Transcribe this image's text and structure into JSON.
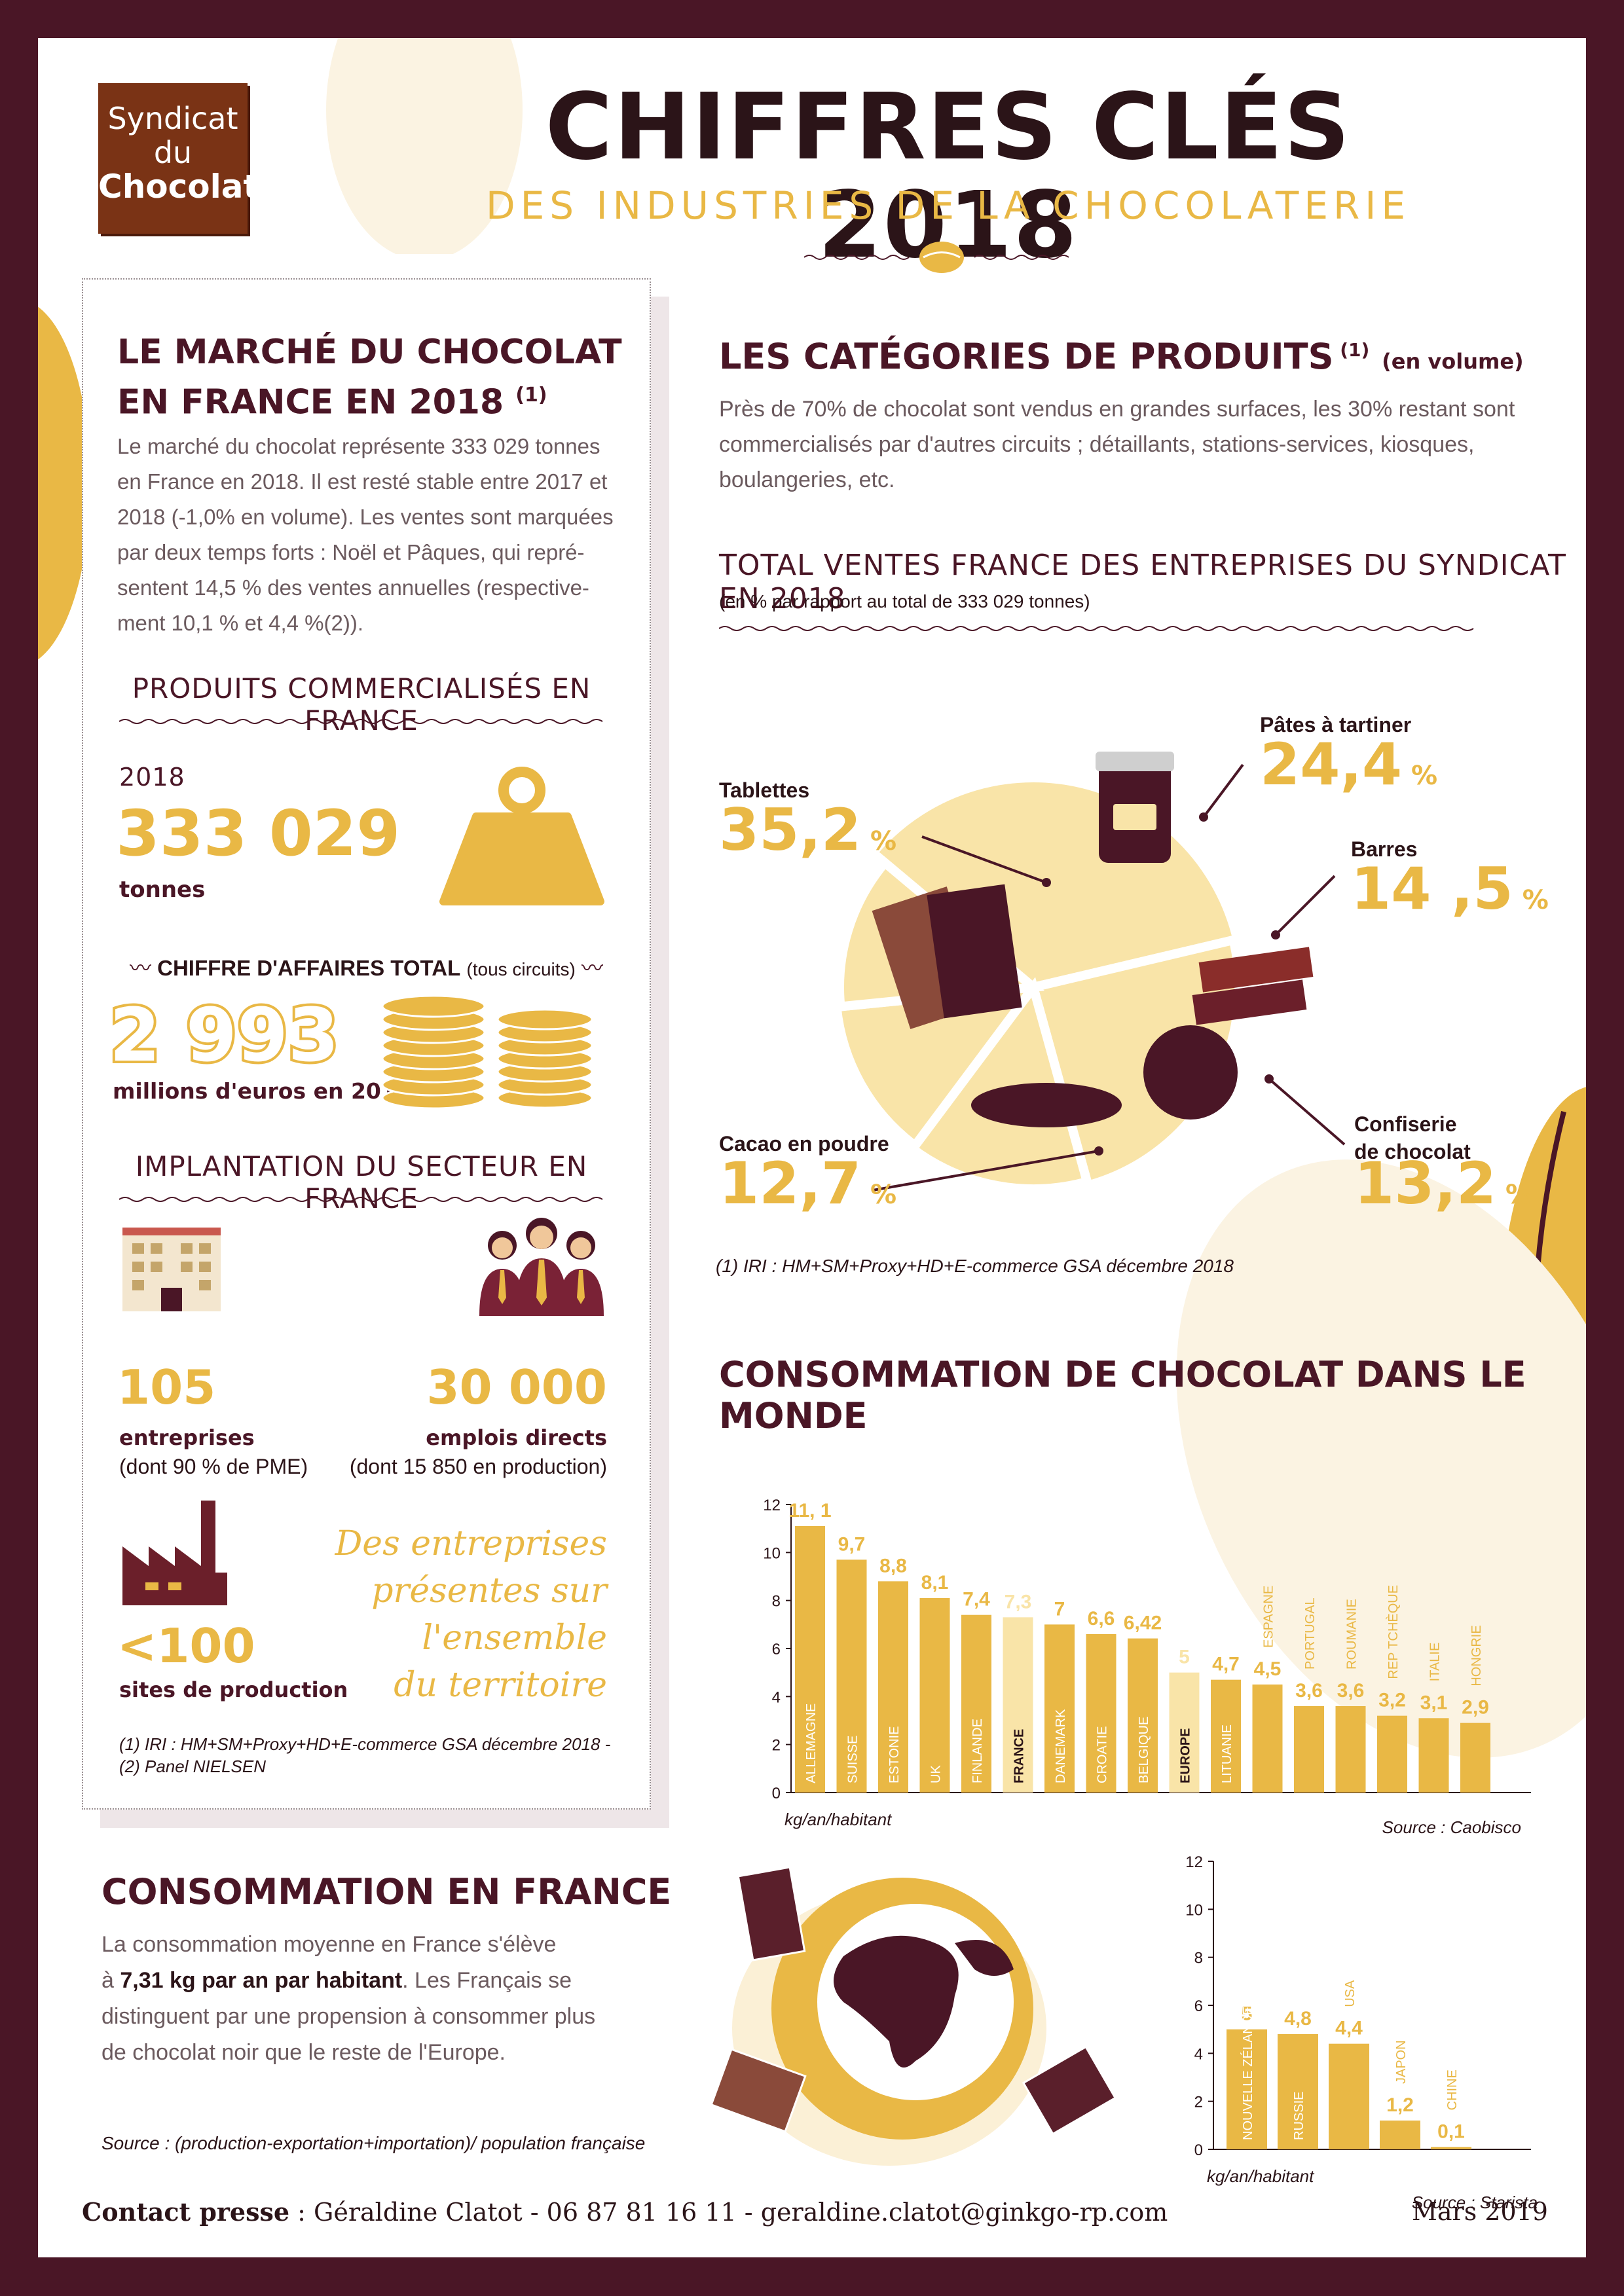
{
  "colors": {
    "brand_dark": "#4a1626",
    "accent_yellow": "#e9b845",
    "pale_yellow": "#f9e4a8",
    "chocolate": "#5a1f2b"
  },
  "logo": {
    "line1": "Syndicat",
    "line2": "du",
    "line3": "Chocolat"
  },
  "header": {
    "title": "CHIFFRES CLÉS 2018",
    "subtitle": "DES INDUSTRIES DE LA CHOCOLATERIE"
  },
  "market": {
    "heading_line1": "LE MARCHÉ DU CHOCOLAT",
    "heading_line2": "EN FRANCE EN 2018",
    "heading_sup": "(1)",
    "paragraph": [
      "Le marché du chocolat représente 333 029 tonnes",
      "en France en 2018. Il est resté stable entre 2017 et",
      "2018 (-1,0% en volume). Les ventes sont marquées",
      "par deux temps forts : Noël et Pâques, qui repré-",
      "sentent 14,5 % des ventes annuelles (respective-",
      "ment 10,1 % et 4,4 %(2))."
    ]
  },
  "products": {
    "heading": "PRODUITS COMMERCIALISÉS EN FRANCE",
    "year": "2018",
    "value": "333 029",
    "unit": "tonnes"
  },
  "turnover": {
    "heading_bold": "CHIFFRE D'AFFAIRES TOTAL",
    "heading_note": "(tous circuits)",
    "value": "2 993",
    "unit": "millions d'euros en 2018"
  },
  "implantation": {
    "heading": "IMPLANTATION DU SECTEUR EN FRANCE",
    "companies_value": "105",
    "companies_label": "entreprises",
    "companies_note": "(dont 90 % de PME)",
    "jobs_value": "30 000",
    "jobs_label": "emplois directs",
    "jobs_note": "(dont 15 850 en production)",
    "sites_value": "<100",
    "sites_label": "sites de production",
    "slogan": [
      "Des entreprises",
      "présentes sur",
      "l'ensemble",
      "du territoire"
    ],
    "footnote_1": "(1) IRI : HM+SM+Proxy+HD+E-commerce GSA décembre 2018  -",
    "footnote_2": "(2) Panel NIELSEN"
  },
  "categories": {
    "heading": "LES CATÉGORIES DE PRODUITS",
    "heading_sup": "(1)",
    "heading_note": "(en volume)",
    "paragraph": [
      "Près de 70% de chocolat sont vendus en grandes surfaces, les 30% restant sont",
      "commercialisés par d'autres circuits ; détaillants, stations-services, kiosques,",
      "boulangeries, etc."
    ],
    "sales_heading": "TOTAL VENTES FRANCE DES ENTREPRISES DU SYNDICAT EN 2018",
    "sales_subheading": "(en % par rapport au total de 333 029 tonnes)",
    "footnote": "(1) IRI : HM+SM+Proxy+HD+E-commerce GSA décembre 2018"
  },
  "chart_data": [
    {
      "type": "pie",
      "categories": [
        "Tablettes",
        "Pâtes à tartiner",
        "Barres",
        "Confiserie de chocolat",
        "Cacao en poudre"
      ],
      "values": [
        35.2,
        24.4,
        14.5,
        13.2,
        12.7
      ],
      "labels": [
        "35,2",
        "24,4",
        "14 ,5",
        "13,2",
        "12,7"
      ],
      "unit": "%"
    },
    {
      "type": "bar",
      "title": "CONSOMMATION DE CHOCOLAT DANS LE MONDE",
      "categories": [
        "ALLEMAGNE",
        "SUISSE",
        "ESTONIE",
        "UK",
        "FINLANDE",
        "FRANCE",
        "DANEMARK",
        "CROATIE",
        "BELGIQUE",
        "EUROPE",
        "LITUANIE",
        "ESPAGNE",
        "PORTUGAL",
        "ROUMANIE",
        "REP TCHÈQUE",
        "ITALIE",
        "HONGRIE"
      ],
      "values": [
        11.1,
        9.7,
        8.8,
        8.1,
        7.4,
        7.3,
        7,
        6.6,
        6.42,
        5,
        4.7,
        4.5,
        3.6,
        3.6,
        3.2,
        3.1,
        2.9
      ],
      "labels": [
        "11, 1",
        "9,7",
        "8,8",
        "8,1",
        "7,4",
        "7,3",
        "7",
        "6,6",
        "6,42",
        "5",
        "4,7",
        "4,5",
        "3,6",
        "3,6",
        "3,2",
        "3,1",
        "2,9"
      ],
      "highlighted": [
        "FRANCE",
        "EUROPE"
      ],
      "ylim": [
        0,
        12
      ],
      "yticks": [
        "0",
        "2",
        "4",
        "6",
        "8",
        "10",
        "12"
      ],
      "unit": "kg/an/habitant",
      "source": "Source : Caobisco"
    },
    {
      "type": "bar",
      "categories": [
        "NOUVELLE ZÉLANDE",
        "RUSSIE",
        "USA",
        "JAPON",
        "CHINE"
      ],
      "values": [
        5,
        4.8,
        4.4,
        1.2,
        0.1
      ],
      "labels": [
        "5",
        "4,8",
        "4,4",
        "1,2",
        "0,1"
      ],
      "ylim": [
        0,
        12
      ],
      "yticks": [
        "0",
        "2",
        "4",
        "6",
        "8",
        "10",
        "12"
      ],
      "unit": "kg/an/habitant",
      "source": "Source : Starista"
    }
  ],
  "france_consumption": {
    "heading": "CONSOMMATION EN FRANCE",
    "line1": "La consommation moyenne en France s'élève",
    "line2_pre": "à ",
    "line2_bold": "7,31 kg par an par habitant",
    "line2_post": ". Les Français se",
    "line3": "distinguent par une propension à consommer plus",
    "line4": "de chocolat noir que le reste de l'Europe.",
    "source": "Source : (production-exportation+importation)/ population française"
  },
  "footer": {
    "contact_label": "Contact presse",
    "contact_text": " : Géraldine Clatot - 06 87 81 16 11 - geraldine.clatot@ginkgo-rp.com",
    "date": "Mars 2019"
  }
}
